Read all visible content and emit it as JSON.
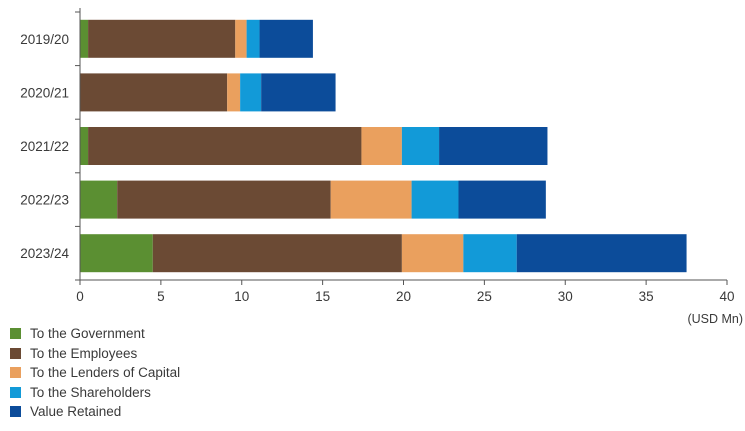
{
  "chart_data": {
    "type": "bar",
    "orientation": "horizontal",
    "stacked": true,
    "categories": [
      "2019/20",
      "2020/21",
      "2021/22",
      "2022/23",
      "2023/24"
    ],
    "series": [
      {
        "name": "To the Government",
        "color": "#5b8f32",
        "values": [
          0.5,
          0.0,
          0.5,
          2.3,
          4.5
        ]
      },
      {
        "name": "To the Employees",
        "color": "#6b4a34",
        "values": [
          9.1,
          9.1,
          16.9,
          13.2,
          15.4
        ]
      },
      {
        "name": "To the Lenders of Capital",
        "color": "#eaa05e",
        "values": [
          0.7,
          0.8,
          2.5,
          5.0,
          3.8
        ]
      },
      {
        "name": "To the Shareholders",
        "color": "#129ad8",
        "values": [
          0.8,
          1.3,
          2.3,
          2.9,
          3.3
        ]
      },
      {
        "name": "Value Retained",
        "color": "#0c4c9a",
        "values": [
          3.3,
          4.6,
          6.7,
          5.4,
          10.5
        ]
      }
    ],
    "xticks": [
      "0",
      "5",
      "10",
      "15",
      "20",
      "25",
      "30",
      "35",
      "40"
    ],
    "xlim": [
      0,
      40
    ],
    "unit_label": "(USD Mn)",
    "grid": false,
    "legend_position": "bottom-left"
  }
}
